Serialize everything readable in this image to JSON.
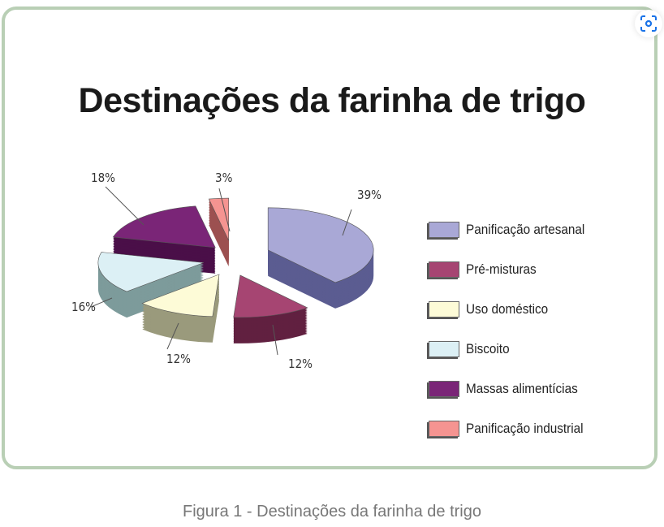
{
  "chart_data": {
    "type": "pie",
    "title": "Destinações da farinha de trigo",
    "categories": [
      "Panificação artesanal",
      "Pré-misturas",
      "Uso doméstico",
      "Biscoito",
      "Massas alimentícias",
      "Panificação industrial"
    ],
    "values": [
      39,
      12,
      12,
      16,
      18,
      3
    ],
    "data_labels": [
      "39%",
      "12%",
      "12%",
      "16%",
      "18%",
      "3%"
    ],
    "colors": [
      "#a9a8d6",
      "#a64572",
      "#fdfbd7",
      "#dcf0f5",
      "#7a2577",
      "#f59491"
    ],
    "side_colors": [
      "#5b5c91",
      "#612040",
      "#9a9a7c",
      "#7d9b9b",
      "#4a0f48",
      "#9c5050"
    ],
    "legend_position": "right",
    "style": "3d-exploded"
  },
  "caption": "Figura 1 - Destinações da farinha de trigo",
  "lens_icon": "visual-search-icon"
}
